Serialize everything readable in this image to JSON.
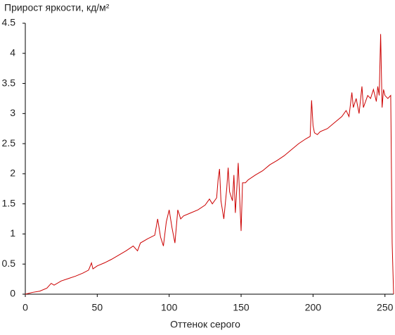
{
  "chart_data": {
    "type": "line",
    "title": "Прирост яркости, кд/м²",
    "x_label": "Оттенок серого",
    "x": [
      0,
      5,
      10,
      15,
      18,
      20,
      25,
      30,
      35,
      40,
      44,
      46,
      47,
      50,
      55,
      60,
      65,
      70,
      75,
      78,
      80,
      85,
      90,
      92,
      94,
      96,
      98,
      100,
      102,
      104,
      106,
      108,
      110,
      115,
      120,
      125,
      128,
      130,
      133,
      134,
      135,
      136,
      137,
      138,
      140,
      141,
      142,
      144,
      145,
      146,
      147,
      148,
      149,
      150,
      151,
      153,
      155,
      160,
      165,
      170,
      175,
      180,
      185,
      190,
      195,
      198,
      199,
      200,
      201,
      203,
      205,
      210,
      215,
      220,
      223,
      225,
      227,
      228,
      230,
      232,
      234,
      235,
      238,
      240,
      242,
      244,
      245,
      246,
      247,
      248,
      249,
      250,
      252,
      254,
      255,
      256
    ],
    "series": [
      {
        "name": "Прирост яркости",
        "color": "#cc0000",
        "values": [
          0,
          0.03,
          0.05,
          0.1,
          0.18,
          0.15,
          0.22,
          0.26,
          0.3,
          0.35,
          0.4,
          0.52,
          0.42,
          0.47,
          0.52,
          0.58,
          0.65,
          0.72,
          0.8,
          0.72,
          0.85,
          0.92,
          0.98,
          1.25,
          0.95,
          0.8,
          1.2,
          1.4,
          1.1,
          0.85,
          1.4,
          1.25,
          1.3,
          1.35,
          1.4,
          1.48,
          1.58,
          1.5,
          1.6,
          1.9,
          2.08,
          1.55,
          1.4,
          1.25,
          1.75,
          2.1,
          1.7,
          1.55,
          1.98,
          1.35,
          1.75,
          2.18,
          1.6,
          1.05,
          1.85,
          1.85,
          1.9,
          1.98,
          2.05,
          2.15,
          2.22,
          2.3,
          2.4,
          2.5,
          2.58,
          2.62,
          3.22,
          2.8,
          2.68,
          2.65,
          2.7,
          2.75,
          2.85,
          2.95,
          3.05,
          2.95,
          3.35,
          3.1,
          3.25,
          3.0,
          3.45,
          3.1,
          3.3,
          3.25,
          3.4,
          3.2,
          3.45,
          3.3,
          4.32,
          3.1,
          3.4,
          3.3,
          3.25,
          3.3,
          0.85,
          0
        ]
      }
    ],
    "xlim": [
      0,
      256
    ],
    "ylim": [
      0,
      4.5
    ],
    "xticks": [
      0,
      50,
      100,
      150,
      200,
      250
    ],
    "yticks": [
      0,
      0.5,
      1,
      1.5,
      2,
      2.5,
      3,
      3.5,
      4,
      4.5
    ]
  }
}
